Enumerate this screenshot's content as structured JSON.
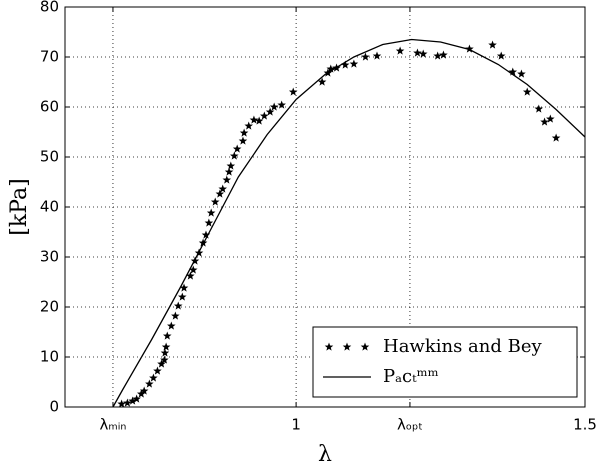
{
  "chart_data": {
    "type": "line",
    "ylabel": "[kPa]",
    "xlabel": "λ",
    "xlim": [
      0.6,
      1.5
    ],
    "ylim": [
      0,
      80
    ],
    "xticks": [
      {
        "value": 0.683,
        "label": "λₘᵢₙ"
      },
      1,
      {
        "value": 1.197,
        "label": "λₒₚₜ"
      },
      1.5
    ],
    "yticks": [
      0,
      10,
      20,
      30,
      40,
      50,
      60,
      70,
      80
    ],
    "grid": true,
    "legend": "lower right",
    "series": [
      {
        "name": "Hawkins and Bey",
        "color": "#000000",
        "style": "markers",
        "x": [
          0.698,
          0.708,
          0.717,
          0.724,
          0.732,
          0.737,
          0.746,
          0.753,
          0.76,
          0.767,
          0.772,
          0.773,
          0.775,
          0.777,
          0.784,
          0.791,
          0.796,
          0.803,
          0.806,
          0.817,
          0.822,
          0.825,
          0.832,
          0.839,
          0.844,
          0.849,
          0.853,
          0.86,
          0.868,
          0.873,
          0.88,
          0.884,
          0.887,
          0.893,
          0.898,
          0.908,
          0.91,
          0.918,
          0.927,
          0.936,
          0.945,
          0.955,
          0.962,
          0.975,
          0.995,
          1.045,
          1.055,
          1.06,
          1.07,
          1.085,
          1.1,
          1.12,
          1.14,
          1.18,
          1.21,
          1.22,
          1.245,
          1.255,
          1.3,
          1.34,
          1.355,
          1.375,
          1.39,
          1.4,
          1.42,
          1.43,
          1.44,
          1.45
        ],
        "values": [
          0.6,
          0.8,
          1.2,
          1.6,
          2.6,
          3.2,
          4.6,
          5.8,
          7.2,
          8.6,
          9.4,
          10.8,
          12,
          14.2,
          16.2,
          18.2,
          20.2,
          22,
          23.8,
          26.2,
          27.4,
          29.2,
          30.8,
          32.8,
          34.4,
          36.8,
          38.8,
          41,
          42.6,
          43.6,
          45.4,
          47,
          48.2,
          50.2,
          51.6,
          53.2,
          54.8,
          56.2,
          57.4,
          57.2,
          58.2,
          59,
          60,
          60.4,
          63,
          65,
          66.8,
          67.6,
          67.8,
          68.4,
          68.6,
          70,
          70.2,
          71.2,
          70.8,
          70.6,
          70.2,
          70.4,
          71.6,
          72.4,
          70.2,
          67,
          66.6,
          63,
          59.6,
          57,
          57.6,
          53.8
        ]
      },
      {
        "name": "Pₐcₜᵐᵐ",
        "color": "#000000",
        "style": "line",
        "x": [
          0.683,
          0.7,
          0.75,
          0.8,
          0.85,
          0.9,
          0.95,
          1.0,
          1.05,
          1.1,
          1.15,
          1.2,
          1.25,
          1.3,
          1.35,
          1.4,
          1.45,
          1.5
        ],
        "values": [
          0,
          3.5,
          13.5,
          24,
          35,
          46,
          54.5,
          61.5,
          66.5,
          70,
          72.5,
          73.5,
          73,
          71.5,
          68.5,
          64.5,
          59.5,
          54
        ]
      }
    ]
  }
}
